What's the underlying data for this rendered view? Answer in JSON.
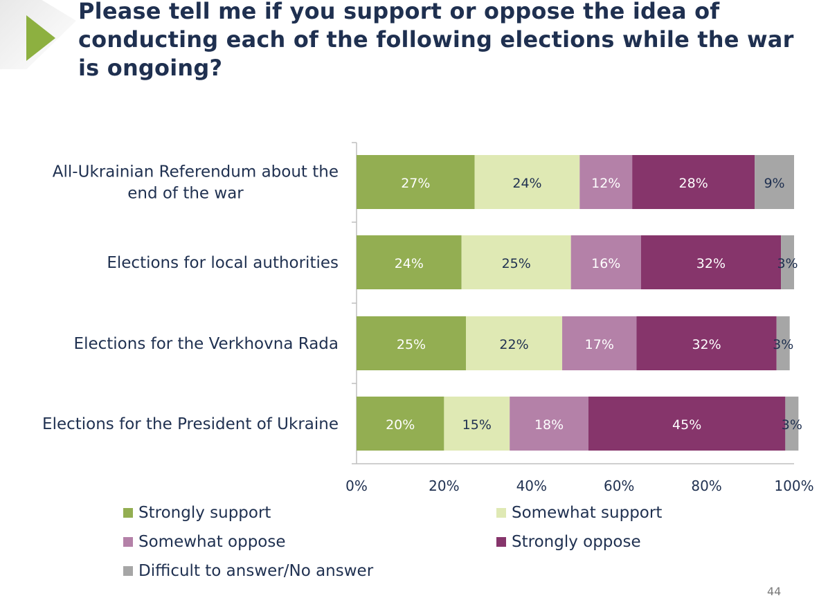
{
  "title": "Please tell me if you support or oppose the idea of conducting each of the following elections while the war is ongoing?",
  "page_number": "44",
  "chart_data": {
    "type": "bar",
    "orientation": "horizontal",
    "stacked": true,
    "categories": [
      [
        "All-Ukrainian Referendum about the",
        "end of the war"
      ],
      [
        "Elections for local authorities"
      ],
      [
        "Elections for the Verkhovna Rada"
      ],
      [
        "Elections for the President of Ukraine"
      ]
    ],
    "series": [
      {
        "name": "Strongly support",
        "color": "#93ae52",
        "text_color": "#ffffff",
        "values": [
          27,
          24,
          25,
          20
        ]
      },
      {
        "name": "Somewhat support",
        "color": "#dfe9b4",
        "text_color": "#1f3050",
        "values": [
          24,
          25,
          22,
          15
        ]
      },
      {
        "name": "Somewhat oppose",
        "color": "#b481a8",
        "text_color": "#ffffff",
        "values": [
          12,
          16,
          17,
          18
        ]
      },
      {
        "name": "Strongly oppose",
        "color": "#86356b",
        "text_color": "#ffffff",
        "values": [
          28,
          32,
          32,
          45
        ]
      },
      {
        "name": "Difficult to answer/No answer",
        "color": "#a6a6a6",
        "text_color": "#1f3050",
        "values": [
          9,
          3,
          3,
          3
        ]
      }
    ],
    "value_suffix": "%",
    "xlim": [
      0,
      100
    ],
    "xticks": [
      0,
      20,
      40,
      60,
      80,
      100
    ],
    "xtick_labels": [
      "0%",
      "20%",
      "40%",
      "60%",
      "80%",
      "100%"
    ],
    "legend_position": "bottom",
    "grid": false
  }
}
